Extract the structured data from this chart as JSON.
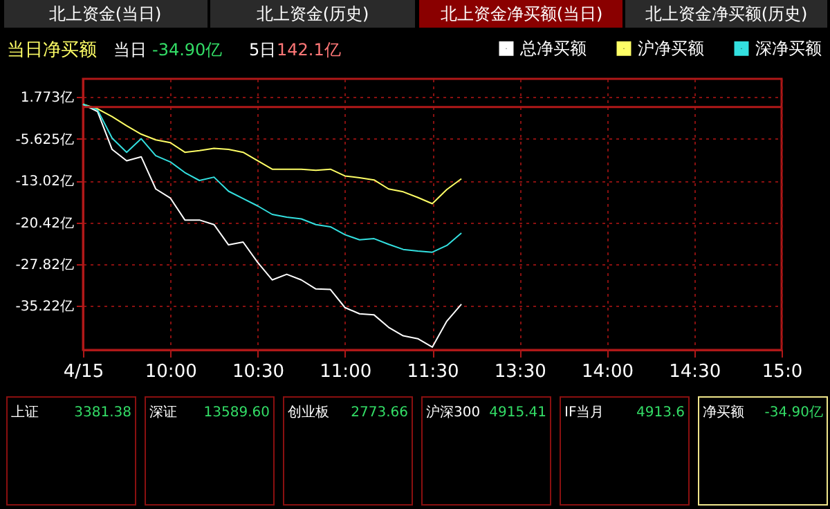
{
  "chart_data": {
    "type": "line",
    "title": "当日净买额",
    "annotations": [
      "北上资金(当日)",
      "北上资金(历史)",
      "北上资金净买额(当日)",
      "北上资金净买额(历史)",
      "当日",
      "-34.90亿",
      "5日",
      "142.1亿",
      "上证",
      "3381.38",
      "深证",
      "13589.60",
      "创业板",
      "2773.66",
      "沪深300",
      "4915.41",
      "IF当月",
      "4913.6",
      "净买额",
      "-34.90亿"
    ],
    "categories": [
      "4/15",
      null,
      null,
      null,
      null,
      null,
      "10:00",
      null,
      null,
      null,
      null,
      null,
      "10:30",
      null,
      null,
      null,
      null,
      null,
      "11:00",
      null,
      null,
      null,
      null,
      null,
      "11:30",
      null,
      null,
      null,
      null,
      null,
      "13:30",
      null,
      null,
      null,
      null,
      null,
      "14:00",
      null,
      null,
      null,
      null,
      null,
      "14:30",
      null,
      null,
      null,
      null,
      null,
      "15:0"
    ],
    "series": [
      {
        "name": "总净买额",
        "color": "#ffffff",
        "values": [
          0.5,
          -0.8,
          -7.5,
          -9.5,
          -8.8,
          -14.5,
          -16.1,
          -20.0,
          -20.0,
          -20.8,
          -24.4,
          -23.9,
          -27.5,
          -30.6,
          -29.6,
          -30.6,
          -32.2,
          -32.3,
          -35.5,
          -36.6,
          -36.8,
          -39.0,
          -40.5,
          -41.0,
          -42.5,
          -37.9,
          -34.9,
          null,
          null,
          null,
          null,
          null,
          null,
          null,
          null,
          null,
          null,
          null,
          null,
          null,
          null,
          null,
          null,
          null,
          null,
          null,
          null,
          null,
          null
        ]
      },
      {
        "name": "沪净买额",
        "color": "#ffff66",
        "values": [
          0.5,
          -0.3,
          -1.7,
          -3.3,
          -4.8,
          -5.8,
          -6.3,
          -8.0,
          -7.7,
          -7.3,
          -7.5,
          -8.0,
          -9.5,
          -11.0,
          -11.0,
          -11.0,
          -11.2,
          -11.0,
          -12.2,
          -12.5,
          -12.9,
          -14.5,
          -15.0,
          -16.0,
          -17.1,
          -14.6,
          -12.7,
          null,
          null,
          null,
          null,
          null,
          null,
          null,
          null,
          null,
          null,
          null,
          null,
          null,
          null,
          null,
          null,
          null,
          null,
          null,
          null,
          null,
          null
        ]
      },
      {
        "name": "深净买额",
        "color": "#33e0e0",
        "values": [
          0.5,
          -0.5,
          -5.5,
          -8.0,
          -5.6,
          -8.6,
          -9.7,
          -11.6,
          -13.0,
          -12.4,
          -14.9,
          -16.2,
          -17.5,
          -19.0,
          -19.5,
          -19.8,
          -20.8,
          -21.2,
          -22.6,
          -23.5,
          -23.3,
          -24.3,
          -25.2,
          -25.5,
          -25.7,
          -24.5,
          -22.3,
          null,
          null,
          null,
          null,
          null,
          null,
          null,
          null,
          null,
          null,
          null,
          null,
          null,
          null,
          null,
          null,
          null,
          null,
          null,
          null,
          null,
          null
        ]
      }
    ],
    "ylim": [
      -43.0,
      5.0
    ],
    "yticks": [
      {
        "value": 1.773,
        "label": "1.773亿"
      },
      {
        "value": -5.625,
        "label": "-5.625亿"
      },
      {
        "value": -13.02,
        "label": "-13.02亿"
      },
      {
        "value": -20.42,
        "label": "-20.42亿"
      },
      {
        "value": -27.82,
        "label": "-27.82亿"
      },
      {
        "value": -35.22,
        "label": "-35.22亿"
      }
    ],
    "ref_lines": [
      {
        "axis": "y",
        "value": 0,
        "color": "#b01818"
      }
    ],
    "grid": true,
    "legend": "top right",
    "marker": "none",
    "line_style": "solid"
  }
}
